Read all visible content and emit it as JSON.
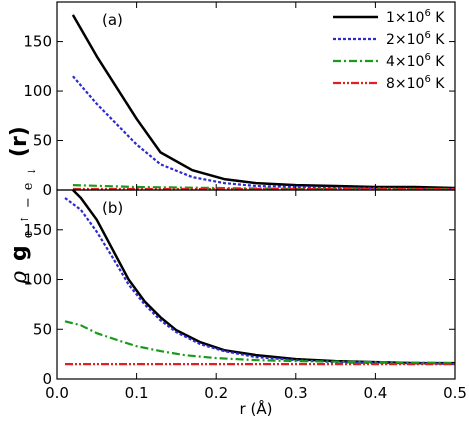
{
  "chart_data": [
    {
      "type": "line",
      "panel_label": "(a)",
      "xlim": [
        0.0,
        0.5
      ],
      "ylim": [
        0,
        190
      ],
      "yticks": [
        0,
        50,
        100,
        150
      ],
      "grid": false,
      "legend": "top-right",
      "series": [
        {
          "name": "1×10⁶ K",
          "label_base": "1×10",
          "label_exp": "6",
          "label_unit": " K",
          "color": "#000000",
          "dash": "",
          "width": 2.5,
          "x": [
            0.02,
            0.05,
            0.1,
            0.13,
            0.17,
            0.21,
            0.25,
            0.3,
            0.35,
            0.4,
            0.45,
            0.5
          ],
          "y": [
            177,
            135,
            72,
            38,
            20,
            11,
            7,
            5,
            4,
            3,
            3,
            2
          ]
        },
        {
          "name": "2×10⁶ K",
          "label_base": "2×10",
          "label_exp": "6",
          "label_unit": " K",
          "color": "#2b2bd0",
          "dash": "3,2",
          "width": 2.2,
          "x": [
            0.02,
            0.05,
            0.1,
            0.13,
            0.17,
            0.21,
            0.25,
            0.3,
            0.35,
            0.4,
            0.45,
            0.5
          ],
          "y": [
            115,
            87,
            46,
            26,
            13,
            7,
            4,
            3,
            2,
            2,
            1,
            1
          ]
        },
        {
          "name": "4×10⁶ K",
          "label_base": "4×10",
          "label_exp": "6",
          "label_unit": " K",
          "color": "#1a9a1a",
          "dash": "8,3,2,3",
          "width": 2.2,
          "x": [
            0.02,
            0.1,
            0.2,
            0.3,
            0.4,
            0.5
          ],
          "y": [
            5,
            3,
            2,
            1,
            1,
            1
          ]
        },
        {
          "name": "8×10⁶ K",
          "label_base": "8×10",
          "label_exp": "6",
          "label_unit": " K",
          "color": "#e02020",
          "dash": "8,2,2,2,2,2",
          "width": 2.2,
          "x": [
            0.02,
            0.1,
            0.2,
            0.3,
            0.4,
            0.5
          ],
          "y": [
            1,
            1,
            1,
            1,
            1,
            1
          ]
        }
      ]
    },
    {
      "type": "line",
      "panel_label": "(b)",
      "xlim": [
        0.0,
        0.5
      ],
      "xticks": [
        0.0,
        0.1,
        0.2,
        0.3,
        0.4,
        0.5
      ],
      "xticklabels": [
        "0.0",
        "0.1",
        "0.2",
        "0.3",
        "0.4",
        "0.5"
      ],
      "ylim": [
        0,
        190
      ],
      "yticks": [
        0,
        50,
        100,
        150
      ],
      "grid": false,
      "series": [
        {
          "name": "1×10⁶ K",
          "color": "#000000",
          "dash": "",
          "width": 2.5,
          "x": [
            0.02,
            0.03,
            0.05,
            0.07,
            0.09,
            0.11,
            0.13,
            0.15,
            0.18,
            0.21,
            0.25,
            0.3,
            0.35,
            0.4,
            0.45,
            0.5
          ],
          "y": [
            190,
            182,
            160,
            130,
            100,
            78,
            62,
            49,
            37,
            29,
            24,
            20,
            18,
            17,
            16,
            16
          ]
        },
        {
          "name": "2×10⁶ K",
          "color": "#2b2bd0",
          "dash": "3,2",
          "width": 2.2,
          "x": [
            0.01,
            0.03,
            0.05,
            0.07,
            0.09,
            0.11,
            0.13,
            0.15,
            0.18,
            0.21,
            0.25,
            0.3,
            0.35,
            0.4,
            0.45,
            0.5
          ],
          "y": [
            182,
            170,
            148,
            122,
            95,
            75,
            59,
            47,
            35,
            28,
            22,
            19,
            17,
            16,
            16,
            15
          ]
        },
        {
          "name": "4×10⁶ K",
          "color": "#1a9a1a",
          "dash": "8,3,2,3",
          "width": 2.2,
          "x": [
            0.01,
            0.03,
            0.05,
            0.08,
            0.1,
            0.13,
            0.16,
            0.2,
            0.25,
            0.3,
            0.4,
            0.5
          ],
          "y": [
            58,
            54,
            46,
            38,
            33,
            28,
            24,
            21,
            19,
            18,
            17,
            16
          ]
        },
        {
          "name": "8×10⁶ K",
          "color": "#e02020",
          "dash": "8,2,2,2,2,2",
          "width": 2.2,
          "x": [
            0.01,
            0.1,
            0.2,
            0.3,
            0.4,
            0.5
          ],
          "y": [
            15,
            15,
            15,
            15,
            15,
            15
          ]
        }
      ]
    }
  ],
  "xlabel": "r (Å)",
  "ylabel": {
    "rho": "ρ",
    "g": "g",
    "sub_a": "e",
    "sub_a_arrow": "↑",
    "sub_dash": "−",
    "sub_b": "e",
    "sub_b_arrow": "↓",
    "tail": "(r)"
  }
}
